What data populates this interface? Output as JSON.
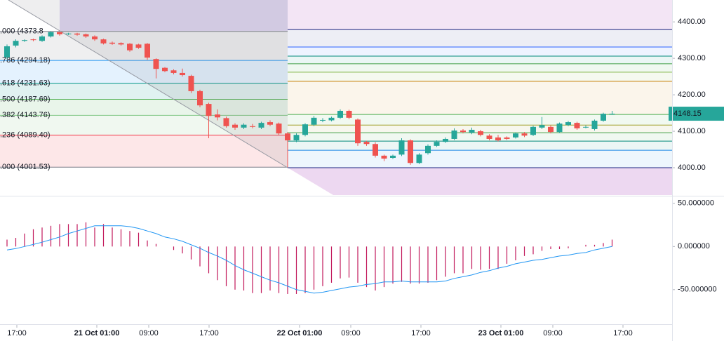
{
  "chart_data": [
    {
      "type": "candlestick",
      "x": [
        0,
        1,
        2,
        3,
        4,
        5,
        6,
        7,
        8,
        9,
        10,
        11,
        12,
        13,
        14,
        15,
        16,
        17,
        18,
        19,
        20,
        21,
        22,
        23,
        24,
        25,
        26,
        27,
        28,
        29,
        30,
        31,
        32,
        33,
        34,
        35,
        36,
        37,
        38,
        39,
        40,
        41,
        42,
        43,
        44,
        45,
        46,
        47,
        48,
        49,
        50,
        51,
        52,
        53,
        54,
        55,
        56,
        57,
        58,
        59,
        60,
        61,
        62,
        63,
        64,
        65,
        66,
        67,
        68,
        69
      ],
      "open": [
        4303,
        4335,
        4348,
        4352,
        4348,
        4360,
        4372,
        4366,
        4368,
        4366,
        4360,
        4352,
        4343,
        4342,
        4340,
        4338,
        4340,
        4298,
        4274,
        4267,
        4260,
        4252,
        4210,
        4175,
        4146,
        4136,
        4118,
        4110,
        4114,
        4110,
        4125,
        4121,
        4094,
        4075,
        4090,
        4118,
        4129,
        4130,
        4137,
        4156,
        4132,
        4071,
        4065,
        4033,
        4027,
        4036,
        4075,
        4013,
        4040,
        4060,
        4071,
        4079,
        4102,
        4096,
        4100,
        4088,
        4083,
        4083,
        4083,
        4094,
        4090,
        4110,
        4112,
        4098,
        4117,
        4123,
        4111,
        4106,
        4129,
        4146
      ],
      "high": [
        4338,
        4352,
        4352,
        4354,
        4363,
        4373.8,
        4373,
        4370,
        4370,
        4368,
        4363,
        4354,
        4346,
        4344,
        4342,
        4340,
        4342,
        4300,
        4276,
        4270,
        4272,
        4255,
        4214,
        4178,
        4160,
        4140,
        4122,
        4122,
        4120,
        4126,
        4130,
        4124,
        4098,
        4094,
        4122,
        4142,
        4136,
        4140,
        4160,
        4159,
        4135,
        4074,
        4070,
        4036,
        4036,
        4081,
        4078,
        4040,
        4064,
        4075,
        4083,
        4108,
        4106,
        4110,
        4104,
        4092,
        4090,
        4086,
        4097,
        4098,
        4115,
        4139,
        4116,
        4124,
        4128,
        4126,
        4116,
        4132,
        4151,
        4156
      ],
      "low": [
        4298,
        4330,
        4345,
        4347,
        4345,
        4357,
        4362,
        4364,
        4362,
        4356,
        4348,
        4338,
        4337,
        4335,
        4318,
        4326,
        4296,
        4245,
        4262,
        4256,
        4250,
        4205,
        4166,
        4081,
        4130,
        4110,
        4104,
        4106,
        4108,
        4106,
        4114,
        4090,
        4001.53,
        4070,
        4086,
        4114,
        4125,
        4127,
        4134,
        4133,
        4060,
        4060,
        4028,
        4018,
        4024,
        4032,
        4008,
        4010,
        4036,
        4057,
        4068,
        4076,
        4094,
        4092,
        4086,
        4075,
        4072,
        4076,
        4080,
        4084,
        4087,
        4106,
        4094,
        4095,
        4114,
        4104,
        4108,
        4102,
        4126,
        4145
      ],
      "close": [
        4333,
        4348,
        4350,
        4350,
        4360,
        4372,
        4366,
        4368,
        4365,
        4360,
        4352,
        4341,
        4340,
        4338,
        4322,
        4329,
        4302,
        4271,
        4265,
        4260,
        4254,
        4210,
        4171,
        4142,
        4138,
        4114,
        4110,
        4118,
        4112,
        4123,
        4118,
        4094,
        4075,
        4090,
        4119,
        4137,
        4131,
        4137,
        4156,
        4137,
        4067,
        4065,
        4033,
        4025,
        4033,
        4075,
        4013,
        4036,
        4060,
        4071,
        4079,
        4102,
        4098,
        4104,
        4090,
        4079,
        4075,
        4079,
        4094,
        4088,
        4112,
        4117,
        4098,
        4121,
        4125,
        4108,
        4112,
        4129,
        4148,
        4148.15
      ],
      "up_color": "#26a69a",
      "down_color": "#ef5350",
      "xlim": [
        -0.8,
        75.84
      ],
      "ylim": [
        3925,
        4460
      ],
      "yticks": [
        {
          "value": 4000,
          "label": "4000.00"
        },
        {
          "value": 4100,
          "label": "4100.00"
        },
        {
          "value": 4200,
          "label": "4200.00"
        },
        {
          "value": 4300,
          "label": "4300.00"
        },
        {
          "value": 4400,
          "label": "4400.00"
        }
      ],
      "xticks": [
        {
          "value": 1.12,
          "label": "17:00"
        },
        {
          "value": 10.24,
          "label": "21 Oct 01:00"
        },
        {
          "value": 16.16,
          "label": "09:00"
        },
        {
          "value": 23.04,
          "label": "17:00"
        },
        {
          "value": 33.36,
          "label": "22 Oct 01:00"
        },
        {
          "value": 39.2,
          "label": "09:00"
        },
        {
          "value": 47.2,
          "label": "17:00"
        },
        {
          "value": 56.32,
          "label": "23 Oct 01:00"
        },
        {
          "value": 62.24,
          "label": "09:00"
        },
        {
          "value": 70.24,
          "label": "17:00"
        }
      ],
      "last_price": 4148.15,
      "last_price_color": "#26a69a",
      "fib_levels": [
        {
          "label": ".000 (4373.8",
          "value": 4373.8,
          "color": "#787b86"
        },
        {
          "label": ".786 (4294.18)",
          "value": 4294.18,
          "color": "#2196f3"
        },
        {
          "label": ".618 (4231.63)",
          "value": 4231.63,
          "color": "#009688"
        },
        {
          "label": ".500 (4187.69)",
          "value": 4187.69,
          "color": "#4caf50"
        },
        {
          "label": ".382 (4143.76)",
          "value": 4143.76,
          "color": "#81c784"
        },
        {
          "label": ".236 (4089.40)",
          "value": 4089.4,
          "color": "#f23645"
        },
        {
          "label": ".000 (4001.53)",
          "value": 4001.53,
          "color": "#787b86"
        }
      ],
      "fib_lines_2": [
        {
          "value": 4379,
          "color": "#1a237e"
        },
        {
          "value": 4331,
          "color": "#2962ff"
        },
        {
          "value": 4306,
          "color": "#00897b"
        },
        {
          "value": 4285,
          "color": "#43a047"
        },
        {
          "value": 4262,
          "color": "#7cb342"
        },
        {
          "value": 4237,
          "color": "#c77c02"
        },
        {
          "value": 4146,
          "color": "#4caf50"
        },
        {
          "value": 4117,
          "color": "#9e9d24"
        },
        {
          "value": 4096,
          "color": "#43a047"
        },
        {
          "value": 4073,
          "color": "#00897b"
        },
        {
          "value": 4048,
          "color": "#1e88e5"
        },
        {
          "value": 4000,
          "color": "#1a237e"
        }
      ]
    },
    {
      "type": "oscillator",
      "ylim": [
        -90,
        58
      ],
      "yticks": [
        {
          "value": -50,
          "label": "-50.000000"
        },
        {
          "value": 0,
          "label": "0.000000"
        },
        {
          "value": 50,
          "label": "50.000000"
        }
      ],
      "histogram": {
        "color": "#c2185b",
        "values": [
          8,
          10,
          15,
          20,
          22,
          24,
          26,
          26,
          26,
          28,
          22,
          26,
          22,
          20,
          18,
          16,
          7,
          3,
          0,
          -4,
          -8,
          -15,
          -23,
          -31,
          -39,
          -46,
          -50,
          -51,
          -54,
          -54,
          -51,
          -54,
          -55,
          -55,
          -54,
          -50,
          -46,
          -42,
          -37,
          -36,
          -42,
          -47,
          -51,
          -47,
          -43,
          -41,
          -43,
          -43,
          -42,
          -39,
          -35,
          -31,
          -31,
          -26,
          -27,
          -26,
          -26,
          -20,
          -16,
          -11,
          -9,
          -5,
          -3,
          -3,
          -2,
          0,
          2,
          2,
          4,
          8
        ]
      },
      "signal": {
        "color": "#2196f3",
        "values": [
          -4,
          -2.4,
          0,
          2.4,
          5,
          8,
          11,
          15,
          18,
          21,
          24,
          24,
          24,
          24,
          23,
          21,
          18,
          15,
          11,
          9,
          6,
          2,
          -2,
          -7,
          -11,
          -16,
          -22,
          -27,
          -31,
          -35,
          -39,
          -42,
          -46,
          -50,
          -52,
          -54,
          -53,
          -51,
          -49,
          -47,
          -46,
          -44,
          -43,
          -41,
          -41,
          -40,
          -41,
          -41,
          -41,
          -41,
          -40,
          -37,
          -35,
          -33,
          -30,
          -28,
          -25,
          -23,
          -20,
          -18,
          -16,
          -15,
          -13,
          -11,
          -10,
          -8,
          -7,
          -4,
          -2,
          0
        ]
      }
    }
  ]
}
